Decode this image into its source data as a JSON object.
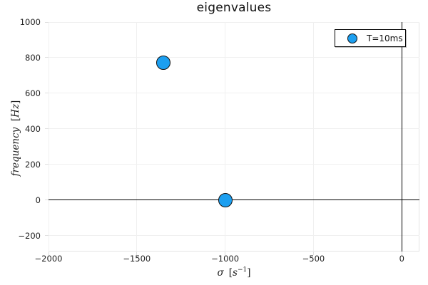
{
  "chart_data": {
    "type": "scatter",
    "title": "eigenvalues",
    "xlabel": "σ [s⁻¹]",
    "xlabel_parts": {
      "symbol": "σ",
      "open": "[",
      "unit": "s",
      "exponent": "−1",
      "close": "]"
    },
    "ylabel": "frequency [Hz]",
    "ylabel_parts": {
      "word": "frequency",
      "open": "[",
      "unit": "Hz",
      "close": "]"
    },
    "xlim": [
      -2000,
      100
    ],
    "ylim": [
      -290,
      1000
    ],
    "xticks": {
      "values": [
        -2000,
        -1500,
        -1000,
        -500,
        0
      ],
      "labels": [
        "−2000",
        "−1500",
        "−1000",
        "−500",
        "0"
      ]
    },
    "yticks": {
      "values": [
        -200,
        0,
        200,
        400,
        600,
        800,
        1000
      ],
      "labels": [
        "−200",
        "0",
        "200",
        "400",
        "600",
        "800",
        "1000"
      ]
    },
    "grid": true,
    "legend": {
      "position": "top-right",
      "entries": [
        {
          "label": "T=10ms",
          "marker": "circle",
          "color": "#1C9FF0"
        }
      ]
    },
    "series": [
      {
        "name": "T=10ms",
        "marker": "circle",
        "fill": "#1C9FF0",
        "stroke": "#111111",
        "points": [
          [
            -1350,
            770
          ],
          [
            -1000,
            0
          ]
        ]
      }
    ],
    "reference_lines": {
      "hline_y": 0,
      "vline_x": 0,
      "color": "#000000"
    },
    "colors": {
      "background": "#ffffff",
      "grid": "#f0f0f0",
      "tick_mark": "#e0e0e0",
      "frame": "#e4e4e4",
      "tick_text": "#1f1f1f",
      "title_text": "#111111"
    }
  }
}
